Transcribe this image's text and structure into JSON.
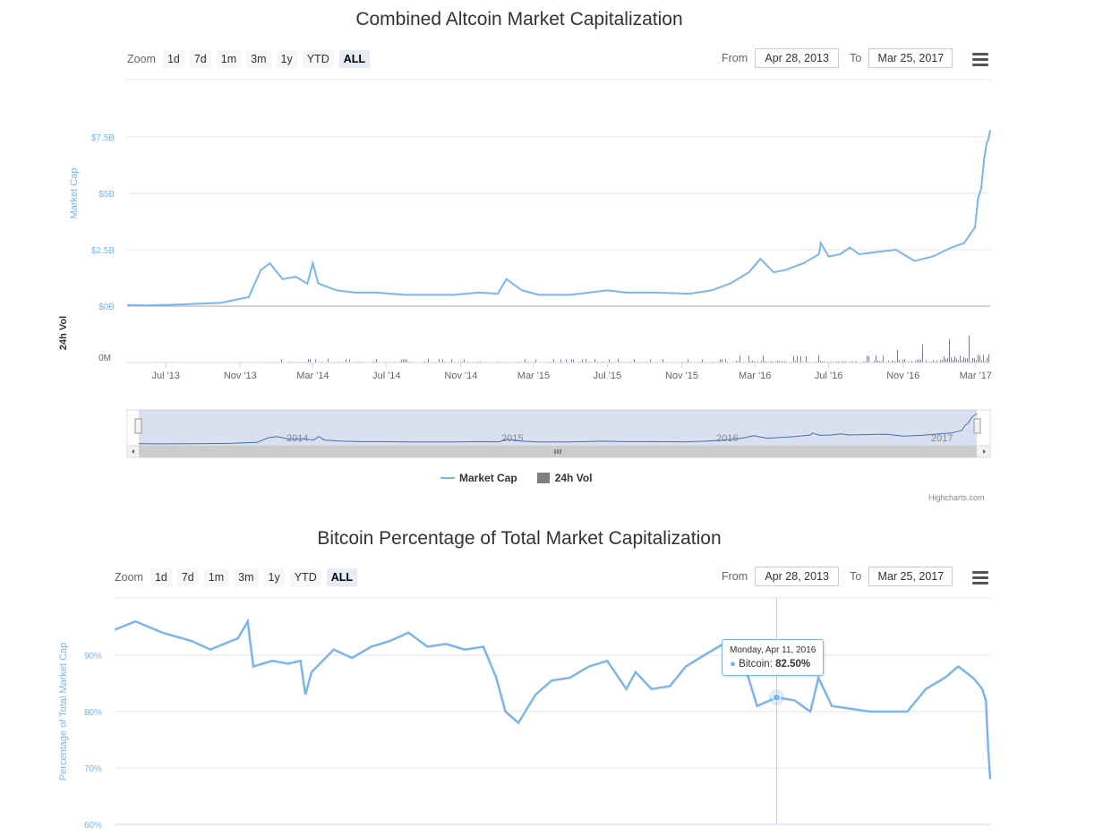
{
  "chart_data": [
    {
      "type": "line",
      "title": "Combined Altcoin Market Capitalization",
      "ylabel": "Market Cap",
      "ylabel2": "24h Vol",
      "yticks": [
        "$0B",
        "$2.5B",
        "$5B",
        "$7.5B"
      ],
      "ylim": [
        0,
        7.5
      ],
      "vol_ticks": [
        "0M"
      ],
      "xticks": [
        "Jul '13",
        "Nov '13",
        "Mar '14",
        "Jul '14",
        "Nov '14",
        "Mar '15",
        "Jul '15",
        "Nov '15",
        "Mar '16",
        "Jul '16",
        "Nov '16",
        "Mar '17"
      ],
      "navigator_years": [
        "2014",
        "2015",
        "2016",
        "2017"
      ],
      "series": [
        {
          "name": "Market Cap",
          "color": "#7cb5ec",
          "x": [
            "2013-04-28",
            "2013-06-01",
            "2013-08-01",
            "2013-10-01",
            "2013-11-15",
            "2013-12-05",
            "2013-12-20",
            "2014-01-10",
            "2014-02-01",
            "2014-02-20",
            "2014-03-01",
            "2014-03-10",
            "2014-04-10",
            "2014-05-10",
            "2014-06-15",
            "2014-08-01",
            "2014-09-15",
            "2014-10-20",
            "2014-12-01",
            "2015-01-01",
            "2015-01-15",
            "2015-02-10",
            "2015-03-10",
            "2015-05-01",
            "2015-07-01",
            "2015-08-01",
            "2015-09-15",
            "2015-11-15",
            "2015-12-20",
            "2016-01-20",
            "2016-02-20",
            "2016-03-10",
            "2016-04-01",
            "2016-04-20",
            "2016-05-20",
            "2016-06-15",
            "2016-06-18",
            "2016-07-01",
            "2016-07-20",
            "2016-08-05",
            "2016-08-20",
            "2016-09-20",
            "2016-10-20",
            "2016-11-20",
            "2016-12-20",
            "2017-01-20",
            "2017-02-10",
            "2017-02-28",
            "2017-03-05",
            "2017-03-10",
            "2017-03-15",
            "2017-03-19",
            "2017-03-22",
            "2017-03-25"
          ],
          "values": [
            0.05,
            0.03,
            0.08,
            0.15,
            0.4,
            1.6,
            1.9,
            1.2,
            1.3,
            1.0,
            1.9,
            1.0,
            0.7,
            0.6,
            0.6,
            0.5,
            0.5,
            0.5,
            0.6,
            0.55,
            1.2,
            0.7,
            0.5,
            0.5,
            0.7,
            0.6,
            0.6,
            0.55,
            0.7,
            1.0,
            1.5,
            2.1,
            1.5,
            1.6,
            1.9,
            2.3,
            2.8,
            2.2,
            2.3,
            2.6,
            2.3,
            2.4,
            2.5,
            2.0,
            2.2,
            2.6,
            2.8,
            3.5,
            4.8,
            5.2,
            6.5,
            7.2,
            7.4,
            7.8
          ]
        },
        {
          "name": "24h Vol",
          "color": "#7f7f7f"
        }
      ],
      "range_selector": {
        "zoom_label": "Zoom",
        "buttons": [
          "1d",
          "7d",
          "1m",
          "3m",
          "1y",
          "YTD",
          "ALL"
        ],
        "selected": "ALL"
      },
      "from_label": "From",
      "to_label": "To",
      "from": "Apr 28, 2013",
      "to": "Mar 25, 2017",
      "credits": "Highcharts.com"
    },
    {
      "type": "line",
      "title": "Bitcoin Percentage of Total Market Capitalization",
      "ylabel": "Percentage of Total Market Cap",
      "yticks": [
        "60%",
        "70%",
        "80%",
        "90%"
      ],
      "ylim": [
        60,
        100
      ],
      "series": [
        {
          "name": "Bitcoin",
          "color": "#7cb5ec",
          "x": [
            "2013-04-28",
            "2013-06-01",
            "2013-07-15",
            "2013-09-01",
            "2013-10-01",
            "2013-11-15",
            "2013-12-01",
            "2013-12-10",
            "2014-01-10",
            "2014-02-05",
            "2014-02-25",
            "2014-03-05",
            "2014-03-15",
            "2014-04-20",
            "2014-05-20",
            "2014-06-20",
            "2014-07-20",
            "2014-08-20",
            "2014-09-20",
            "2014-10-20",
            "2014-11-20",
            "2014-12-20",
            "2015-01-10",
            "2015-01-25",
            "2015-02-15",
            "2015-03-15",
            "2015-04-10",
            "2015-05-10",
            "2015-06-10",
            "2015-07-10",
            "2015-08-10",
            "2015-08-25",
            "2015-09-20",
            "2015-10-20",
            "2015-11-15",
            "2015-12-15",
            "2016-01-15",
            "2016-02-10",
            "2016-02-25",
            "2016-03-10",
            "2016-04-11",
            "2016-05-10",
            "2016-06-05",
            "2016-06-18",
            "2016-07-10",
            "2016-08-10",
            "2016-09-10",
            "2016-10-10",
            "2016-11-10",
            "2016-12-10",
            "2017-01-10",
            "2017-02-01",
            "2017-02-25",
            "2017-03-05",
            "2017-03-12",
            "2017-03-18",
            "2017-03-22",
            "2017-03-25"
          ],
          "values": [
            94.5,
            96,
            94,
            92.5,
            91,
            93,
            96,
            88,
            89,
            88.5,
            89,
            83,
            87,
            91,
            89.5,
            91.5,
            92.5,
            94,
            91.5,
            92,
            91,
            91.5,
            86,
            80,
            78,
            83,
            85.5,
            86,
            88,
            89,
            84,
            87,
            84,
            84.5,
            88,
            90,
            92,
            91,
            86,
            81,
            82.5,
            82,
            80,
            86,
            81,
            80.5,
            80,
            80,
            80,
            84,
            86,
            88,
            86,
            85,
            84,
            82,
            73,
            68
          ]
        }
      ],
      "tooltip": {
        "date": "Monday, Apr 11, 2016",
        "series": "Bitcoin",
        "value": "82.50%"
      },
      "range_selector": {
        "zoom_label": "Zoom",
        "buttons": [
          "1d",
          "7d",
          "1m",
          "3m",
          "1y",
          "YTD",
          "ALL"
        ],
        "selected": "ALL"
      },
      "from_label": "From",
      "to_label": "To",
      "from": "Apr 28, 2013",
      "to": "Mar 25, 2017"
    }
  ]
}
